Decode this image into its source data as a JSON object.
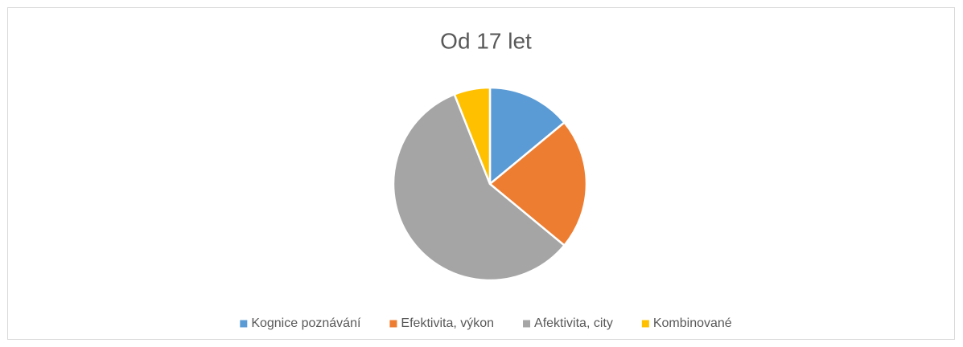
{
  "chart_data": {
    "type": "pie",
    "title": "Od 17 let",
    "categories": [
      "Kognice poznávání",
      "Efektivita, výkon",
      "Afektivita, city",
      "Kombinované"
    ],
    "values": [
      14,
      22,
      58,
      6
    ],
    "colors": [
      "#5b9bd5",
      "#ed7d31",
      "#a5a5a5",
      "#ffc000"
    ],
    "legend": "bottom"
  }
}
